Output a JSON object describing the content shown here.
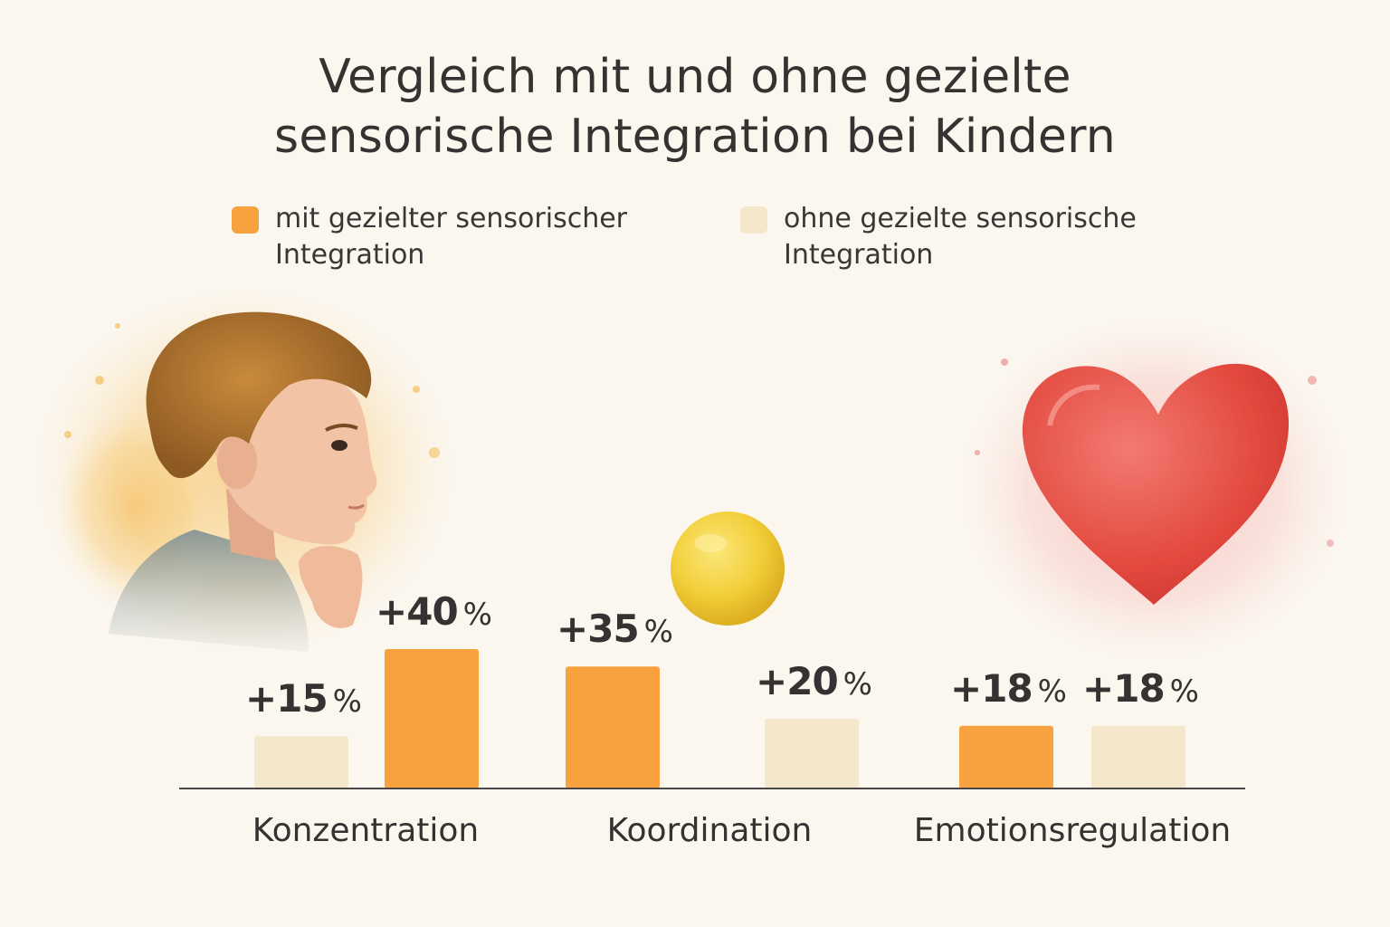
{
  "title": [
    "Vergleich mit und ohne gezielte",
    "sensorische Integration bei Kindern"
  ],
  "colors": {
    "with": "#f7a23e",
    "without": "#f5e7cc",
    "axis": "#4a4646"
  },
  "legend": [
    {
      "label": "mit gezielter sensorischer Integration",
      "color": "#f7a23e"
    },
    {
      "label": "ohne gezielte sensorische Integration",
      "color": "#f5e7cc"
    }
  ],
  "illustrations": [
    "boy-portrait",
    "yellow-ball",
    "red-heart"
  ],
  "chart_data": {
    "type": "bar",
    "categories": [
      "Konzentration",
      "Koordination",
      "Emotionsregulation"
    ],
    "groups": [
      {
        "category": "Konzentration",
        "bars": [
          {
            "series": "ohne gezielte sensorische Integration",
            "value": 15,
            "label": "+15",
            "unit": "%"
          },
          {
            "series": "mit gezielter sensorischer Integration",
            "value": 40,
            "label": "+40",
            "unit": "%"
          }
        ]
      },
      {
        "category": "Koordination",
        "bars": [
          {
            "series": "mit gezielter sensorischer Integration",
            "value": 35,
            "label": "+35",
            "unit": "%"
          },
          {
            "series": "ohne gezielte sensorische Integration",
            "value": 20,
            "label": "+20",
            "unit": "%"
          }
        ]
      },
      {
        "category": "Emotionsregulation",
        "bars": [
          {
            "series": "mit gezielter sensorischer Integration",
            "value": 18,
            "label": "+18",
            "unit": "%"
          },
          {
            "series": "ohne gezielte sensorische Integration",
            "value": 18,
            "label": "+18",
            "unit": "%"
          }
        ]
      }
    ],
    "legend_position": "top",
    "grid": false
  }
}
